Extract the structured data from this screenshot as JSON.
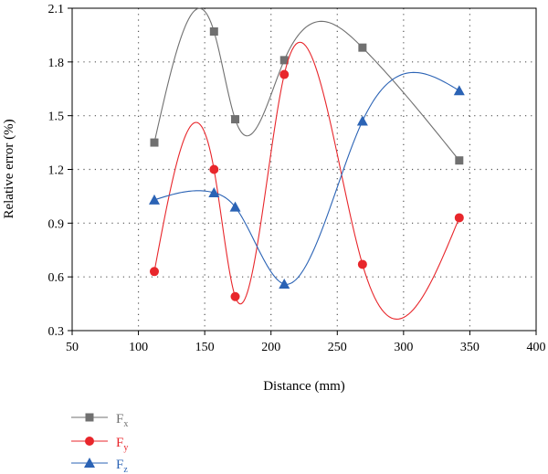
{
  "chart_data": {
    "type": "line",
    "xlabel": "Distance (mm)",
    "ylabel": "Relative error (%)",
    "xlim": [
      50,
      400
    ],
    "ylim": [
      0.3,
      2.1
    ],
    "xticks": [
      50,
      100,
      150,
      200,
      250,
      300,
      350,
      400
    ],
    "yticks": [
      0.3,
      0.6,
      0.9,
      1.2,
      1.5,
      1.8,
      2.1
    ],
    "grid": true,
    "legend_position": "bottom-left, below plot",
    "x": [
      112,
      157,
      173,
      210,
      269,
      342
    ],
    "series": [
      {
        "name": "F",
        "subscript": "x",
        "marker": "square",
        "color": "#707070",
        "values": [
          1.35,
          1.97,
          1.48,
          1.81,
          1.88,
          1.25
        ]
      },
      {
        "name": "F",
        "subscript": "y",
        "marker": "circle",
        "color": "#e8262b",
        "values": [
          0.63,
          1.2,
          0.49,
          1.73,
          0.67,
          0.93
        ]
      },
      {
        "name": "F",
        "subscript": "z",
        "marker": "triangle",
        "color": "#2b63b5",
        "values": [
          1.03,
          1.07,
          0.99,
          0.56,
          1.47,
          1.64
        ]
      }
    ]
  }
}
